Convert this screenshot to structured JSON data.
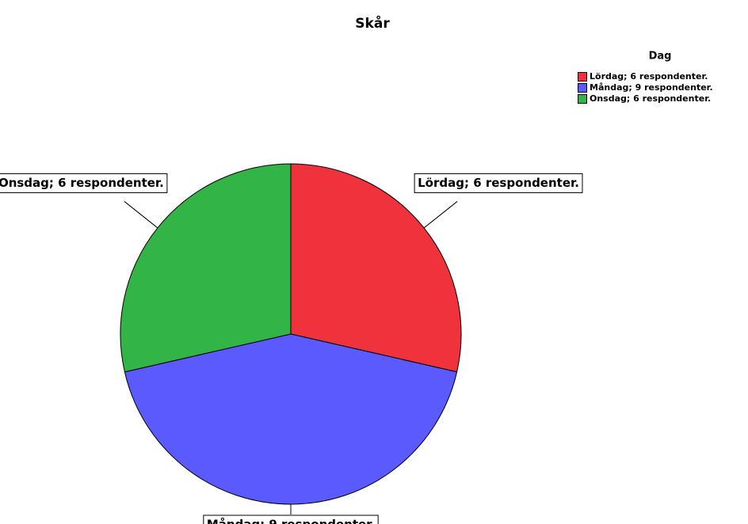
{
  "chart_data": {
    "type": "pie",
    "title": "Skår",
    "legend_title": "Dag",
    "categories": [
      "Lördag; 6 respondenter.",
      "Måndag; 9 respondenter.",
      "Onsdag; 6 respondenter."
    ],
    "values": [
      6,
      9,
      6
    ],
    "colors": [
      "#f0323c",
      "#5a5aff",
      "#32b446"
    ],
    "legend": "top-right"
  }
}
